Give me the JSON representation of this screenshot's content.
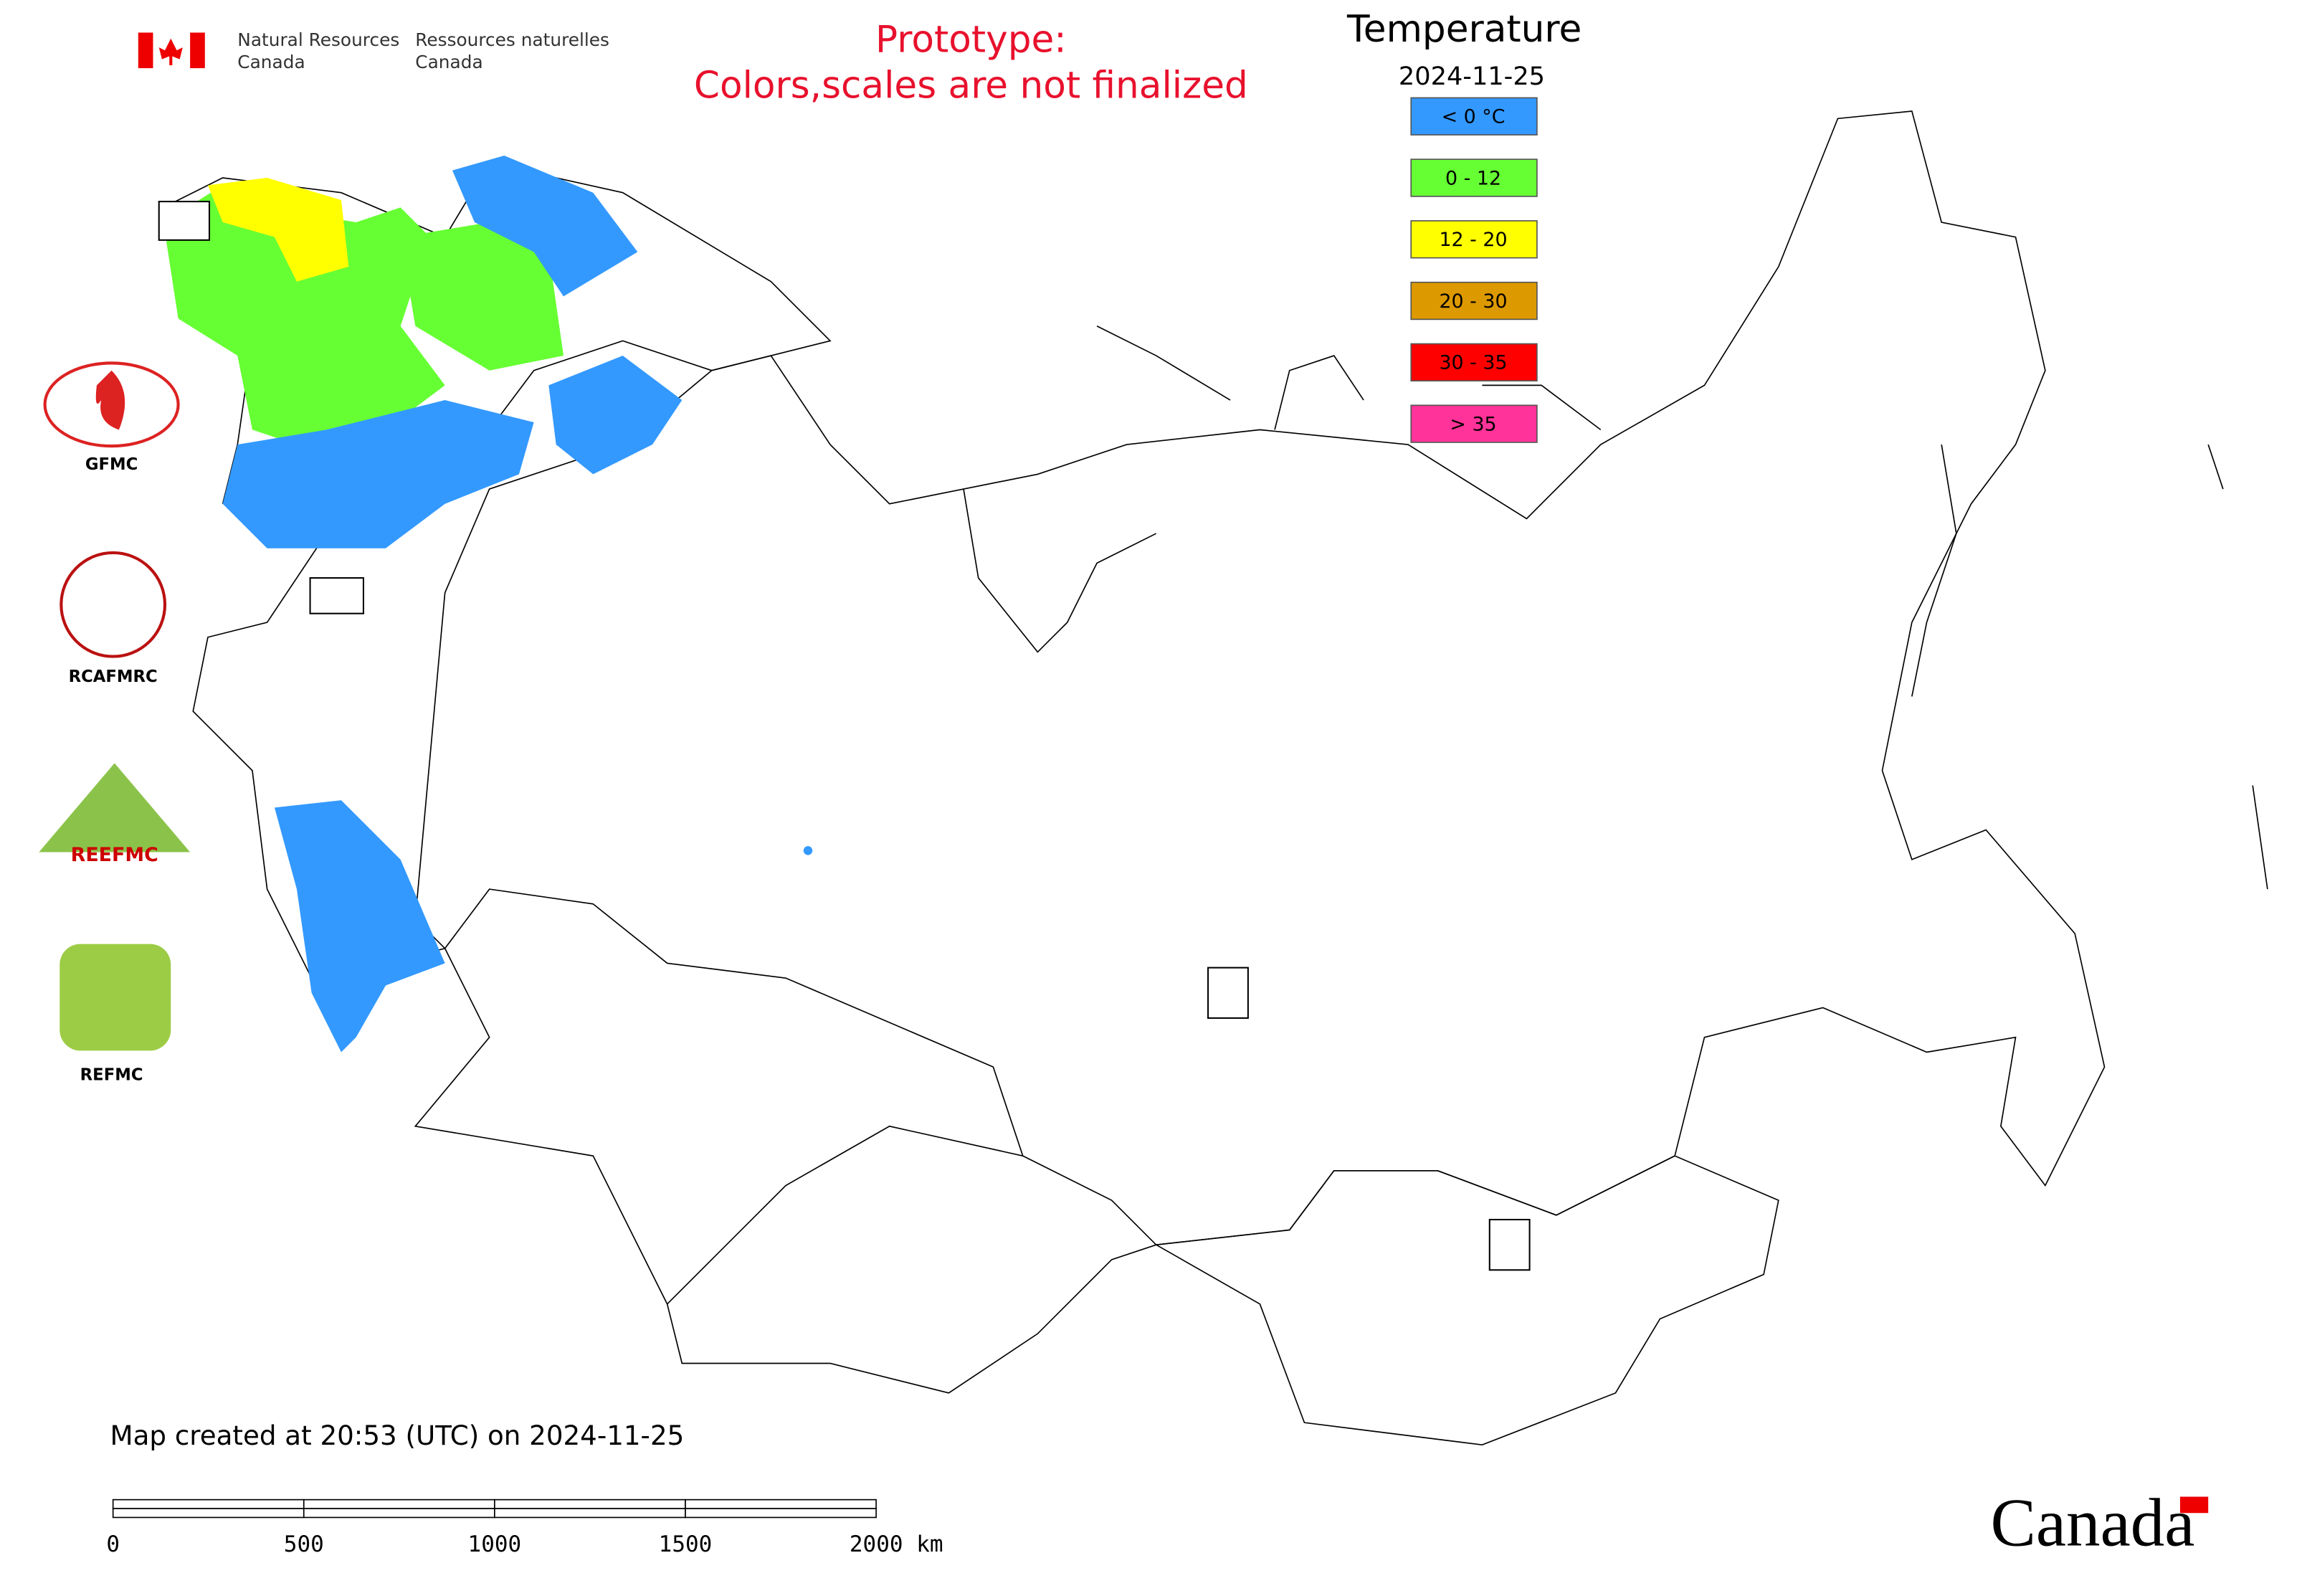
{
  "header": {
    "agency_en": [
      "Natural Resources",
      "Canada"
    ],
    "agency_fr": [
      "Ressources naturelles",
      "Canada"
    ],
    "prototype": [
      "Prototype:",
      "Colors,scales are not finalized"
    ]
  },
  "legend": {
    "title": "Temperature",
    "date": "2024-11-25",
    "items": [
      {
        "label": "< 0 °C",
        "color": "#3399ff"
      },
      {
        "label": "0 - 12",
        "color": "#66ff33"
      },
      {
        "label": "12 - 20",
        "color": "#ffff00"
      },
      {
        "label": "20 - 30",
        "color": "#dd9900"
      },
      {
        "label": "30 - 35",
        "color": "#ff0000"
      },
      {
        "label": "> 35",
        "color": "#ff3399"
      }
    ]
  },
  "logos": {
    "labels": [
      "GFMC",
      "RCAFMRC",
      "REFMC"
    ],
    "reefmc_text": "REEFMC"
  },
  "footer": {
    "created": "Map created at 20:53 (UTC) on 2024-11-25",
    "scale_labels": [
      "0",
      "500",
      "1000",
      "1500",
      "2000 km"
    ],
    "wordmark": "Canada"
  }
}
